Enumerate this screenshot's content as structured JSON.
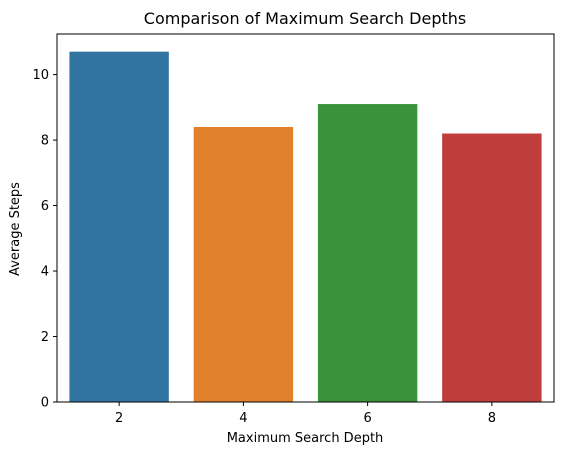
{
  "chart_data": {
    "type": "bar",
    "title": "Comparison of Maximum Search Depths",
    "xlabel": "Maximum Search Depth",
    "ylabel": "Average Steps",
    "categories": [
      "2",
      "4",
      "6",
      "8"
    ],
    "values": [
      10.7,
      8.4,
      9.1,
      8.2
    ],
    "colors": [
      "#3274a1",
      "#e1812c",
      "#3a923a",
      "#c03d3e"
    ],
    "ylim": [
      0,
      11.24
    ],
    "yticks": [
      0,
      2,
      4,
      6,
      8,
      10
    ],
    "grid": false,
    "legend": "none"
  }
}
